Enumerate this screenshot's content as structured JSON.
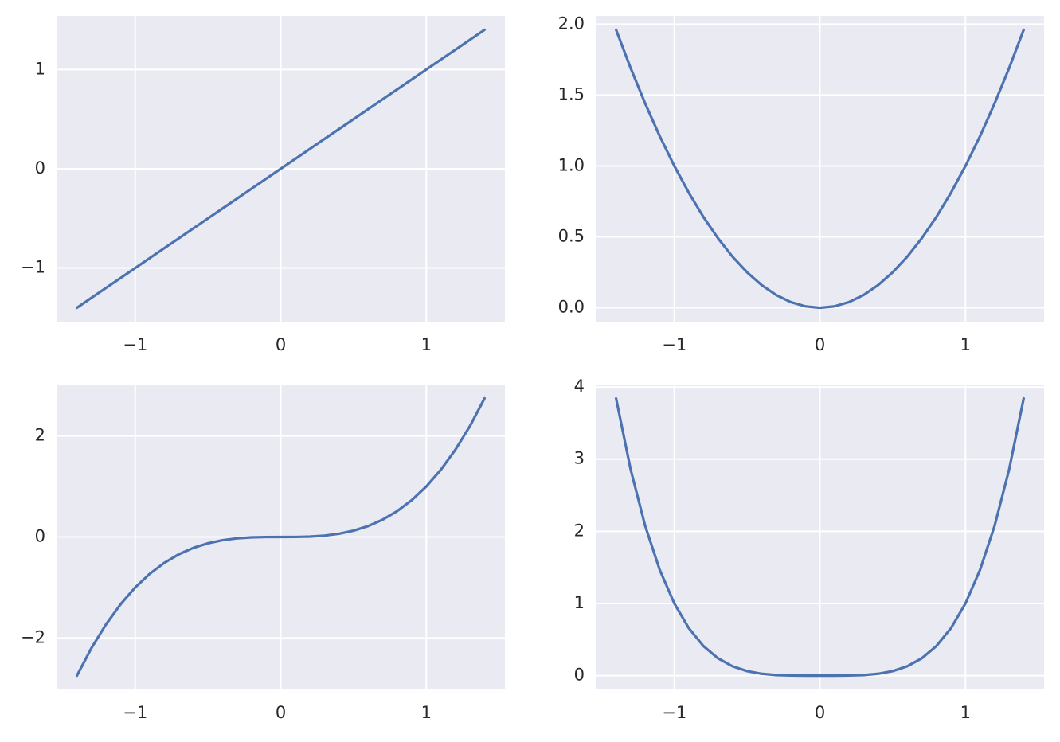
{
  "chart_data": [
    {
      "type": "line",
      "color": "#4c72b0",
      "grid": true,
      "x": [
        -1.4,
        -1.3,
        -1.2,
        -1.1,
        -1,
        -0.9,
        -0.8,
        -0.7,
        -0.6,
        -0.5,
        -0.4,
        -0.3,
        -0.2,
        -0.1,
        0,
        0.1,
        0.2,
        0.3,
        0.4,
        0.5,
        0.6,
        0.7,
        0.8,
        0.9,
        1,
        1.1,
        1.2,
        1.3,
        1.4
      ],
      "values": [
        -1.4,
        -1.3,
        -1.2,
        -1.1,
        -1,
        -0.9,
        -0.8,
        -0.7,
        -0.6,
        -0.5,
        -0.4,
        -0.3,
        -0.2,
        -0.1,
        0,
        0.1,
        0.2,
        0.3,
        0.4,
        0.5,
        0.6,
        0.7,
        0.8,
        0.9,
        1,
        1.1,
        1.2,
        1.3,
        1.4
      ],
      "xlim": [
        -1.54,
        1.54
      ],
      "ylim": [
        -1.54,
        1.54
      ],
      "xticks": [
        {
          "value": -1,
          "label": "−1"
        },
        0,
        1
      ],
      "yticks": [
        {
          "value": -1,
          "label": "−1"
        },
        0,
        1
      ]
    },
    {
      "type": "line",
      "color": "#4c72b0",
      "grid": true,
      "x": [
        -1.4,
        -1.3,
        -1.2,
        -1.1,
        -1,
        -0.9,
        -0.8,
        -0.7,
        -0.6,
        -0.5,
        -0.4,
        -0.3,
        -0.2,
        -0.1,
        0,
        0.1,
        0.2,
        0.3,
        0.4,
        0.5,
        0.6,
        0.7,
        0.8,
        0.9,
        1,
        1.1,
        1.2,
        1.3,
        1.4
      ],
      "values": [
        1.96,
        1.69,
        1.44,
        1.21,
        1,
        0.81,
        0.64,
        0.49,
        0.36,
        0.25,
        0.16,
        0.09,
        0.04,
        0.01,
        0,
        0.01,
        0.04,
        0.09,
        0.16,
        0.25,
        0.36,
        0.49,
        0.64,
        0.81,
        1,
        1.21,
        1.44,
        1.69,
        1.96
      ],
      "xlim": [
        -1.54,
        1.54
      ],
      "ylim": [
        -0.098,
        2.058
      ],
      "xticks": [
        {
          "value": -1,
          "label": "−1"
        },
        0,
        1
      ],
      "yticks": [
        {
          "value": 0,
          "label": "0.0"
        },
        0.5,
        {
          "value": 1,
          "label": "1.0"
        },
        1.5,
        {
          "value": 2,
          "label": "2.0"
        }
      ]
    },
    {
      "type": "line",
      "color": "#4c72b0",
      "grid": true,
      "x": [
        -1.4,
        -1.3,
        -1.2,
        -1.1,
        -1,
        -0.9,
        -0.8,
        -0.7,
        -0.6,
        -0.5,
        -0.4,
        -0.3,
        -0.2,
        -0.1,
        0,
        0.1,
        0.2,
        0.3,
        0.4,
        0.5,
        0.6,
        0.7,
        0.8,
        0.9,
        1,
        1.1,
        1.2,
        1.3,
        1.4
      ],
      "values": [
        -2.744,
        -2.197,
        -1.728,
        -1.331,
        -1,
        -0.729,
        -0.512,
        -0.343,
        -0.216,
        -0.125,
        -0.064,
        -0.027,
        -0.008,
        -0.001,
        0,
        0.001,
        0.008,
        0.027,
        0.064,
        0.125,
        0.216,
        0.343,
        0.512,
        0.729,
        1,
        1.331,
        1.728,
        2.197,
        2.744
      ],
      "xlim": [
        -1.54,
        1.54
      ],
      "ylim": [
        -3.018,
        3.018
      ],
      "xticks": [
        {
          "value": -1,
          "label": "−1"
        },
        0,
        1
      ],
      "yticks": [
        {
          "value": -2,
          "label": "−2"
        },
        0,
        2
      ]
    },
    {
      "type": "line",
      "color": "#4c72b0",
      "grid": true,
      "x": [
        -1.4,
        -1.3,
        -1.2,
        -1.1,
        -1,
        -0.9,
        -0.8,
        -0.7,
        -0.6,
        -0.5,
        -0.4,
        -0.3,
        -0.2,
        -0.1,
        0,
        0.1,
        0.2,
        0.3,
        0.4,
        0.5,
        0.6,
        0.7,
        0.8,
        0.9,
        1,
        1.1,
        1.2,
        1.3,
        1.4
      ],
      "values": [
        3.8416,
        2.8561,
        2.0736,
        1.4641,
        1,
        0.6561,
        0.4096,
        0.2401,
        0.1296,
        0.0625,
        0.0256,
        0.0081,
        0.0016,
        0.0001,
        0,
        0.0001,
        0.0016,
        0.0081,
        0.0256,
        0.0625,
        0.1296,
        0.2401,
        0.4096,
        0.6561,
        1,
        1.4641,
        2.0736,
        2.8561,
        3.8416
      ],
      "xlim": [
        -1.54,
        1.54
      ],
      "ylim": [
        -0.192,
        4.034
      ],
      "xticks": [
        {
          "value": -1,
          "label": "−1"
        },
        0,
        1
      ],
      "yticks": [
        0,
        1,
        2,
        3,
        4
      ]
    }
  ]
}
